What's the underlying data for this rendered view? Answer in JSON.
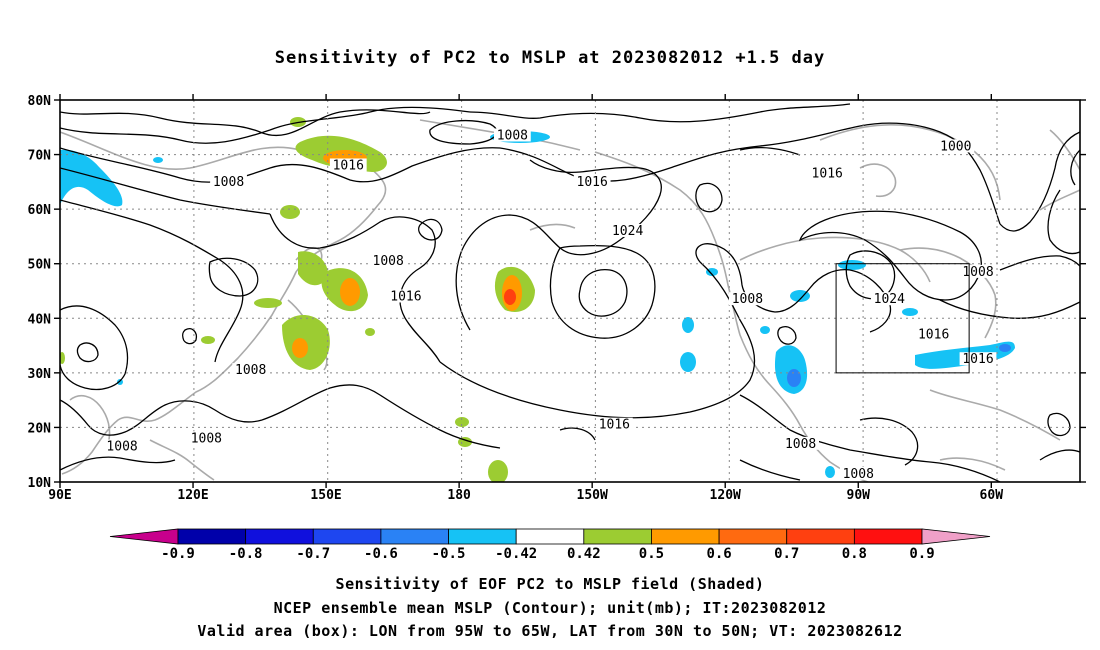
{
  "title": "Sensitivity of PC2 to MSLP at 2023082012 +1.5 day",
  "map": {
    "lat_labels": [
      "80N",
      "70N",
      "60N",
      "50N",
      "40N",
      "30N",
      "20N",
      "10N"
    ],
    "lon_labels": [
      "90E",
      "120E",
      "150E",
      "180",
      "150W",
      "120W",
      "90W",
      "60W"
    ],
    "contour_labels": [
      {
        "text": "1008",
        "lon": 192,
        "lat": 73.5
      },
      {
        "text": "1000",
        "lon": -68,
        "lat": 71.5
      },
      {
        "text": "1016",
        "lon": 155,
        "lat": 68
      },
      {
        "text": "1016",
        "lon": 210,
        "lat": 65
      },
      {
        "text": "1016",
        "lon": -97,
        "lat": 66.5
      },
      {
        "text": "1008",
        "lon": 128,
        "lat": 65
      },
      {
        "text": "1024",
        "lon": 218,
        "lat": 56
      },
      {
        "text": "1008",
        "lon": -63,
        "lat": 48.5
      },
      {
        "text": "1008",
        "lon": 164,
        "lat": 50.5
      },
      {
        "text": "1016",
        "lon": 168,
        "lat": 44
      },
      {
        "text": "1008",
        "lon": -115,
        "lat": 43.5
      },
      {
        "text": "1024",
        "lon": -83,
        "lat": 43.5
      },
      {
        "text": "1016",
        "lon": -73,
        "lat": 37
      },
      {
        "text": "1016",
        "lon": -63,
        "lat": 32.5
      },
      {
        "text": "1008",
        "lon": 133,
        "lat": 30.5
      },
      {
        "text": "1016",
        "lon": 215,
        "lat": 20.5
      },
      {
        "text": "1008",
        "lon": 123,
        "lat": 18
      },
      {
        "text": "1008",
        "lon": 104,
        "lat": 16.5
      },
      {
        "text": "1008",
        "lon": -103,
        "lat": 17
      },
      {
        "text": "1008",
        "lon": -90,
        "lat": 11.5
      }
    ],
    "valid_box": {
      "lon_min": -95,
      "lon_max": -65,
      "lat_min": 30,
      "lat_max": 50
    }
  },
  "colorbar": {
    "labels": [
      "-0.9",
      "-0.8",
      "-0.7",
      "-0.6",
      "-0.5",
      "-0.42",
      "0.42",
      "0.5",
      "0.6",
      "0.7",
      "0.8",
      "0.9"
    ],
    "colors": [
      "#0000aa",
      "#1010dd",
      "#1e46f0",
      "#2a82f5",
      "#16c2f5",
      "#ffffff",
      "#9ccc32",
      "#ff9a00",
      "#ff6a10",
      "#ff4010",
      "#ff1010"
    ],
    "low_end_color": "#c8008c",
    "high_end_color": "#f0a0c8"
  },
  "captions": {
    "line1": "Sensitivity of EOF PC2 to MSLP field (Shaded)",
    "line2": "NCEP ensemble mean MSLP (Contour); unit(mb); IT:2023082012",
    "line3": "Valid area (box): LON from 95W to 65W, LAT from 30N to 50N; VT: 2023082612"
  }
}
